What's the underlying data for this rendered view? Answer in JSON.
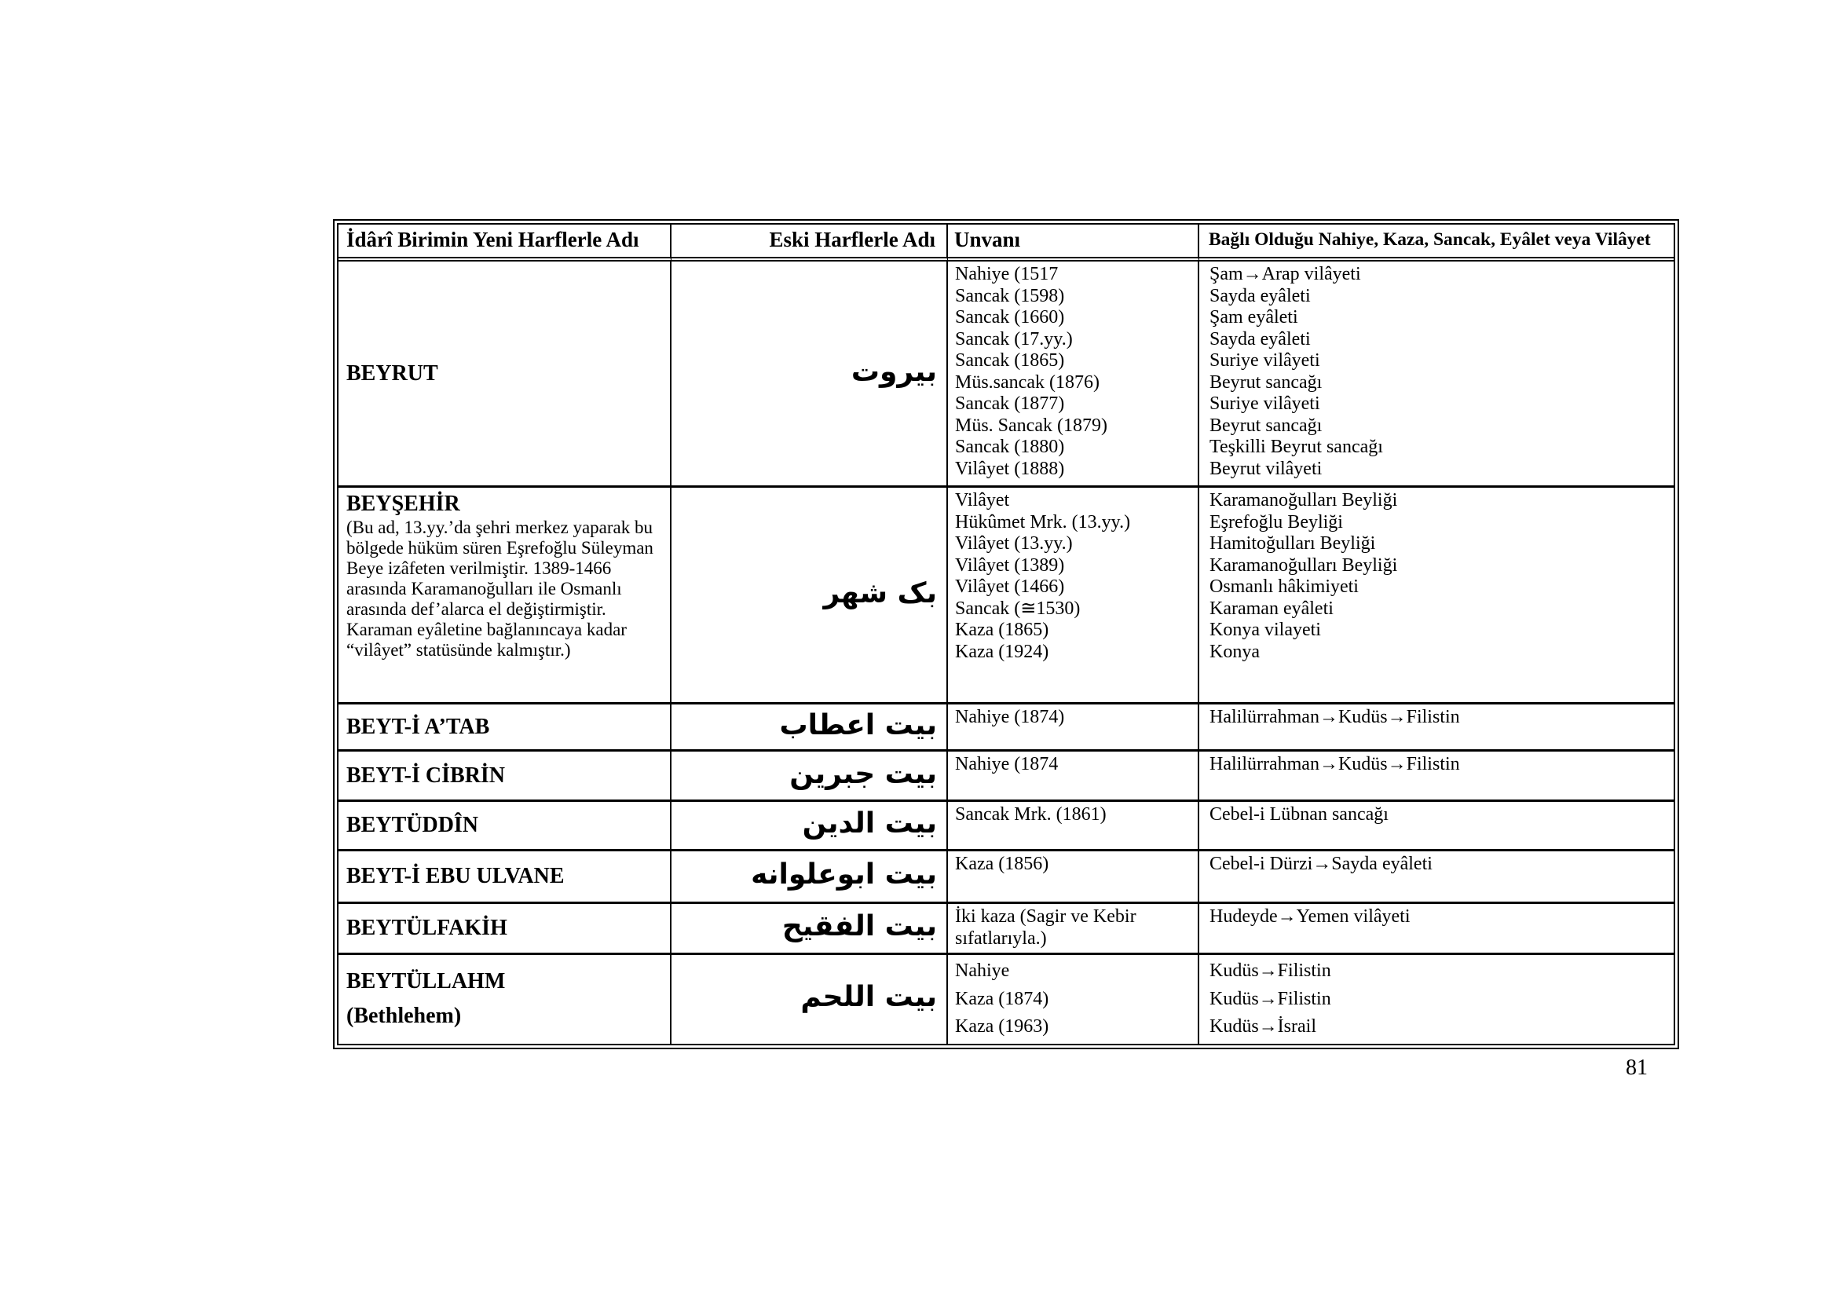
{
  "page": {
    "number": "81"
  },
  "table": {
    "headers": [
      "İdârî Birimin Yeni Harflerle Adı",
      "Eski Harflerle Adı",
      "Unvanı",
      "Bağlı Olduğu Nahiye, Kaza, Sancak, Eyâlet veya Vilâyet"
    ],
    "rows": [
      {
        "name": "BEYRUT",
        "arabic": "بيروت",
        "unvan": [
          "Nahiye (1517",
          "Sancak (1598)",
          "Sancak (1660)",
          "Sancak (17.yy.)",
          "Sancak (1865)",
          "Müs.sancak (1876)",
          "Sancak (1877)",
          "Müs. Sancak (1879)",
          "Sancak (1880)",
          "Vilâyet (1888)"
        ],
        "bagli": [
          "Şam→Arap vilâyeti",
          "Sayda eyâleti",
          "Şam eyâleti",
          "Sayda eyâleti",
          "Suriye vilâyeti",
          "Beyrut sancağı",
          "Suriye vilâyeti",
          "Beyrut sancağı",
          "Teşkilli Beyrut sancağı",
          "Beyrut vilâyeti"
        ]
      },
      {
        "name": "BEYŞEHİR",
        "note": "(Bu ad, 13.yy.’da şehri merkez yaparak bu bölgede hüküm süren Eşrefoğlu Süleyman Beye izâfeten verilmiştir. 1389-1466 arasında Karamanoğulları ile Osmanlı arasında def’alarca el değiştirmiştir. Karaman eyâletine bağlanıncaya kadar “vilâyet” statüsünde kalmıştır.)",
        "arabic": "بک شهر",
        "unvan": [
          "Vilâyet",
          "Hükûmet Mrk. (13.yy.)",
          "Vilâyet (13.yy.)",
          "Vilâyet (1389)",
          "Vilâyet (1466)",
          "Sancak (≅1530)",
          "Kaza (1865)",
          "Kaza (1924)"
        ],
        "bagli": [
          "Karamanoğulları Beyliği",
          "Eşrefoğlu Beyliği",
          "Hamitoğulları Beyliği",
          "Karamanoğulları Beyliği",
          "Osmanlı hâkimiyeti",
          "Karaman eyâleti",
          "Konya vilayeti",
          "Konya"
        ]
      },
      {
        "name": "BEYT-İ A’TAB",
        "arabic": "بيت اعطاب",
        "unvan": [
          "Nahiye (1874)"
        ],
        "bagli": [
          "Halilürrahman→Kudüs→Filistin"
        ]
      },
      {
        "name": "BEYT-İ CİBRİN",
        "arabic": "بيت جبرين",
        "unvan": [
          "Nahiye (1874"
        ],
        "bagli": [
          "Halilürrahman→Kudüs→Filistin"
        ]
      },
      {
        "name": "BEYTÜDDÎN",
        "arabic": "بيت الدين",
        "unvan": [
          "Sancak Mrk. (1861)"
        ],
        "bagli": [
          "Cebel-i Lübnan sancağı"
        ]
      },
      {
        "name": "BEYT-İ EBU ULVANE",
        "arabic": "بيت ابوعلوانه",
        "unvan": [
          "Kaza (1856)"
        ],
        "bagli": [
          "Cebel-i Dürzi→Sayda eyâleti"
        ]
      },
      {
        "name": "BEYTÜLFAKİH",
        "arabic": "بيت الفقيح",
        "unvan": [
          "İki kaza (Sagir ve Kebir",
          "sıfatlarıyla.)"
        ],
        "bagli": [
          "Hudeyde→Yemen vilâyeti"
        ]
      },
      {
        "name": "BEYTÜLLAHM",
        "name_sub": "(Bethlehem)",
        "arabic": "بيت اللحم",
        "unvan": [
          "Nahiye",
          "Kaza (1874)",
          "Kaza (1963)"
        ],
        "bagli": [
          "Kudüs→Filistin",
          "Kudüs→Filistin",
          "Kudüs→İsrail"
        ]
      }
    ]
  }
}
